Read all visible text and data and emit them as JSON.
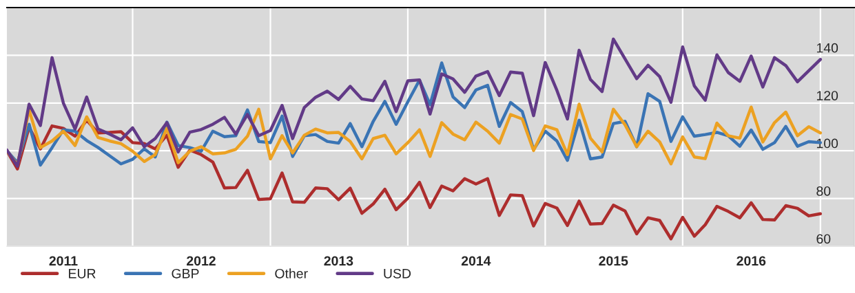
{
  "chart_data": {
    "type": "line",
    "x": [
      "2011-02",
      "2011-03",
      "2011-04",
      "2011-05",
      "2011-06",
      "2011-07",
      "2011-08",
      "2011-09",
      "2011-10",
      "2011-11",
      "2011-12",
      "2012-01",
      "2012-02",
      "2012-03",
      "2012-04",
      "2012-05",
      "2012-06",
      "2012-07",
      "2012-08",
      "2012-09",
      "2012-10",
      "2012-11",
      "2012-12",
      "2013-01",
      "2013-02",
      "2013-03",
      "2013-04",
      "2013-05",
      "2013-06",
      "2013-07",
      "2013-08",
      "2013-09",
      "2013-10",
      "2013-11",
      "2013-12",
      "2014-01",
      "2014-02",
      "2014-03",
      "2014-04",
      "2014-05",
      "2014-06",
      "2014-07",
      "2014-08",
      "2014-09",
      "2014-10",
      "2014-11",
      "2014-12",
      "2015-01",
      "2015-02",
      "2015-03",
      "2015-04",
      "2015-05",
      "2015-06",
      "2015-07",
      "2015-08",
      "2015-09",
      "2015-10",
      "2015-11",
      "2015-12",
      "2016-01",
      "2016-02",
      "2016-03",
      "2016-04",
      "2016-05",
      "2016-06",
      "2016-07",
      "2016-08",
      "2016-09",
      "2016-10",
      "2016-11",
      "2016-12",
      "2017-01"
    ],
    "series": [
      {
        "name": "EUR",
        "color": "#ad2d2d",
        "values": [
          100,
          92.4,
          109.9,
          100.8,
          110.4,
          109.4,
          106.1,
          112.8,
          107.5,
          107.7,
          108,
          103.4,
          103,
          100.8,
          106.5,
          93.1,
          100.3,
          98.4,
          95.3,
          84.4,
          84.6,
          91.8,
          79.6,
          79.9,
          90.7,
          78.6,
          78.4,
          84.4,
          84.1,
          79.5,
          84.3,
          73.8,
          77.7,
          83.9,
          75.3,
          80.1,
          86.8,
          76.2,
          85.2,
          83.2,
          88.3,
          86.1,
          88.3,
          72.9,
          81.5,
          81.2,
          68.5,
          77.9,
          76,
          68.7,
          78.9,
          69.3,
          69.5,
          77.2,
          74.8,
          65.2,
          71.9,
          70.8,
          63.1,
          72.1,
          64.2,
          69,
          76.7,
          74.6,
          71.9,
          78.2,
          71.2,
          71,
          77,
          75.9,
          72.7,
          73.6
        ]
      },
      {
        "name": "GBP",
        "color": "#3a74b4",
        "values": [
          100,
          95,
          111.1,
          94,
          101.3,
          108.8,
          108.2,
          104.3,
          101.4,
          97.9,
          94.5,
          96.4,
          100.8,
          97.4,
          112,
          102.2,
          101.3,
          99.8,
          108.2,
          105.9,
          106.3,
          117.1,
          103.9,
          103.4,
          114.5,
          97.6,
          106.3,
          106.8,
          103.9,
          103.2,
          111.4,
          101.7,
          112.3,
          120.7,
          111.1,
          120.5,
          129.6,
          119.3,
          136.8,
          122.6,
          118.1,
          125.5,
          127.4,
          110.2,
          120.2,
          116.4,
          100.5,
          108.2,
          104.1,
          96,
          112.8,
          96.6,
          97.4,
          111.4,
          112.3,
          101.7,
          123.9,
          120.7,
          103.9,
          114.2,
          106.1,
          106.8,
          107.7,
          106.3,
          101.9,
          108.7,
          100.6,
          103.4,
          110.2,
          101.9,
          103.8,
          103.4
        ]
      },
      {
        "name": "Other",
        "color": "#eca122",
        "values": [
          100,
          94,
          117.1,
          101.3,
          104.1,
          108.2,
          102.2,
          114.2,
          105.6,
          104.1,
          103,
          99.8,
          95.5,
          98.4,
          109.4,
          95,
          99.8,
          101.7,
          98.7,
          99.1,
          100.6,
          106.1,
          117.4,
          96.6,
          106.3,
          99.1,
          106.5,
          109.1,
          107.5,
          107.7,
          103.9,
          96.6,
          105.1,
          106.5,
          98.7,
          103.4,
          108.8,
          97.6,
          111.8,
          107,
          104.6,
          112,
          108.2,
          103.2,
          115.2,
          113.3,
          100.1,
          110.4,
          108.8,
          98.4,
          119.5,
          105.3,
          99.5,
          117.4,
          110.9,
          101.7,
          108.2,
          103.7,
          94.5,
          105.8,
          97.4,
          96.7,
          111.6,
          106.3,
          105.3,
          118.3,
          103.7,
          111.8,
          116.2,
          106.3,
          110.1,
          107.5
        ]
      },
      {
        "name": "USD",
        "color": "#623a87",
        "values": [
          100.3,
          93.5,
          119.5,
          110.6,
          139,
          120,
          109.1,
          122.5,
          109.1,
          107,
          104.6,
          109.6,
          101.7,
          105.1,
          111.8,
          99.5,
          107.8,
          108.9,
          111.1,
          114,
          107,
          115.2,
          106.3,
          108.5,
          119,
          105.1,
          118.1,
          122.4,
          125,
          121.5,
          127,
          121.7,
          121,
          129.1,
          116.4,
          129.3,
          129.7,
          115.4,
          132.2,
          130.1,
          124.5,
          131.3,
          133.2,
          123.1,
          133,
          132.5,
          114.7,
          137,
          125.3,
          113.3,
          142.1,
          129.9,
          124.8,
          146.8,
          138.5,
          130.2,
          135.8,
          131.1,
          120.3,
          143.5,
          127.2,
          121.2,
          140.2,
          132.8,
          129.1,
          139.7,
          126.7,
          139,
          135.7,
          128.9,
          133.5,
          138.3
        ]
      }
    ],
    "xlim": [
      "2011-02",
      "2017-04"
    ],
    "xticks": [
      {
        "value": "2011-07-01",
        "label": "2011"
      },
      {
        "value": "2012-01-01",
        "label": null
      },
      {
        "value": "2012-07-01",
        "label": "2012"
      },
      {
        "value": "2013-01-01",
        "label": null
      },
      {
        "value": "2013-07-01",
        "label": "2013"
      },
      {
        "value": "2014-01-01",
        "label": null
      },
      {
        "value": "2014-07-01",
        "label": "2014"
      },
      {
        "value": "2015-01-01",
        "label": null
      },
      {
        "value": "2015-07-01",
        "label": "2015"
      },
      {
        "value": "2016-01-01",
        "label": null
      },
      {
        "value": "2016-07-01",
        "label": "2016"
      },
      {
        "value": "2017-01-01",
        "label": null
      }
    ],
    "ylim": [
      60,
      160
    ],
    "yticks": [
      60,
      80,
      100,
      120,
      140
    ],
    "grid": true,
    "legend": "bottom left",
    "marker": "none",
    "line_style": "solid"
  }
}
